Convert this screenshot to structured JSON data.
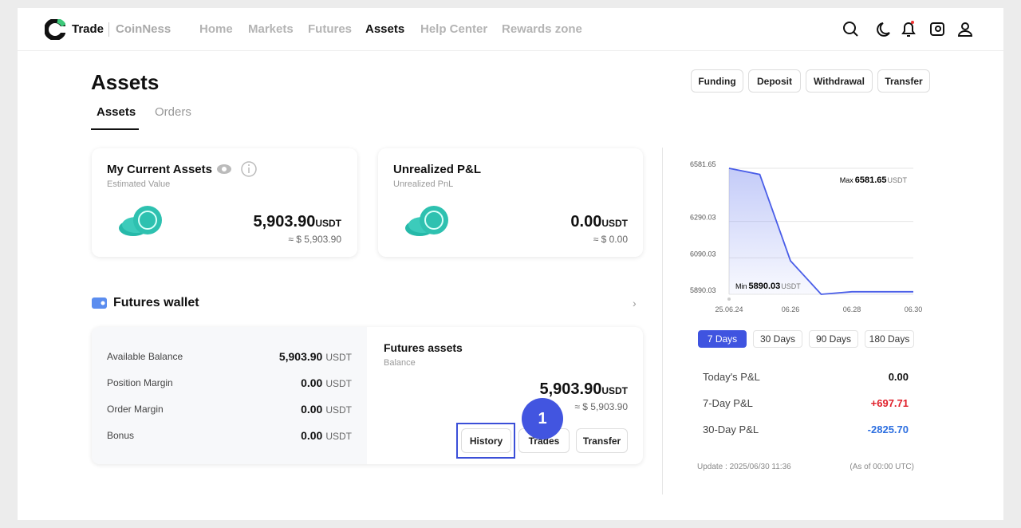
{
  "nav": {
    "brand": "Trade",
    "brand_sub": "CoinNess",
    "links": [
      "Home",
      "Markets",
      "Futures",
      "Assets",
      "Help Center",
      "Rewards zone"
    ]
  },
  "page": {
    "title": "Assets",
    "tabs": [
      "Assets",
      "Orders"
    ],
    "actions": [
      "Funding",
      "Deposit",
      "Withdrawal",
      "Transfer"
    ]
  },
  "cards": [
    {
      "title": "My Current Assets",
      "subtitle": "Estimated Value",
      "amount": "5,903.90",
      "unit": "USDT",
      "approx": "≈ $ 5,903.90"
    },
    {
      "title": "Unrealized P&L",
      "subtitle": "Unrealized PnL",
      "amount": "0.00",
      "unit": "USDT",
      "approx": "≈ $ 0.00"
    }
  ],
  "wallet": {
    "title": "Futures wallet",
    "rows": [
      {
        "label": "Available Balance",
        "value": "5,903.90",
        "unit": "USDT"
      },
      {
        "label": "Position Margin",
        "value": "0.00",
        "unit": "USDT"
      },
      {
        "label": "Order Margin",
        "value": "0.00",
        "unit": "USDT"
      },
      {
        "label": "Bonus",
        "value": "0.00",
        "unit": "USDT"
      }
    ],
    "assets_title": "Futures assets",
    "assets_subtitle": "Balance",
    "amount": "5,903.90",
    "unit": "USDT",
    "approx": "≈ $ 5,903.90",
    "buttons": [
      "History",
      "Trades",
      "Transfer"
    ]
  },
  "chart_data": {
    "type": "line",
    "categories": [
      "25.06.24",
      null,
      "06.26",
      null,
      "06.28",
      null,
      "06.30"
    ],
    "series": [
      {
        "color": "#4a5ee8",
        "values": [
          6581.65,
          6548,
          6074,
          5890.03,
          5903.9,
          5903.9,
          5903.9
        ]
      }
    ],
    "ylim": [
      5890.03,
      6581.65
    ],
    "yticks": [
      5890.03,
      6090.03,
      6290.03,
      6581.65
    ],
    "grid": true,
    "annotations": [
      {
        "label": "Max",
        "value": "6581.65",
        "unit": "USDT"
      },
      {
        "label": "Min",
        "value": "5890.03",
        "unit": "USDT"
      }
    ]
  },
  "periods": [
    "7 Days",
    "30 Days",
    "90 Days",
    "180 Days"
  ],
  "pnl": [
    {
      "label": "Today's P&L",
      "value": "0.00"
    },
    {
      "label": "7-Day P&L",
      "value": "+697.71"
    },
    {
      "label": "30-Day P&L",
      "value": "-2825.70"
    }
  ],
  "footer": {
    "update": "Update : 2025/06/30 11:36",
    "asof": "(As of 00:00 UTC)"
  },
  "annotation": {
    "step": "1"
  }
}
